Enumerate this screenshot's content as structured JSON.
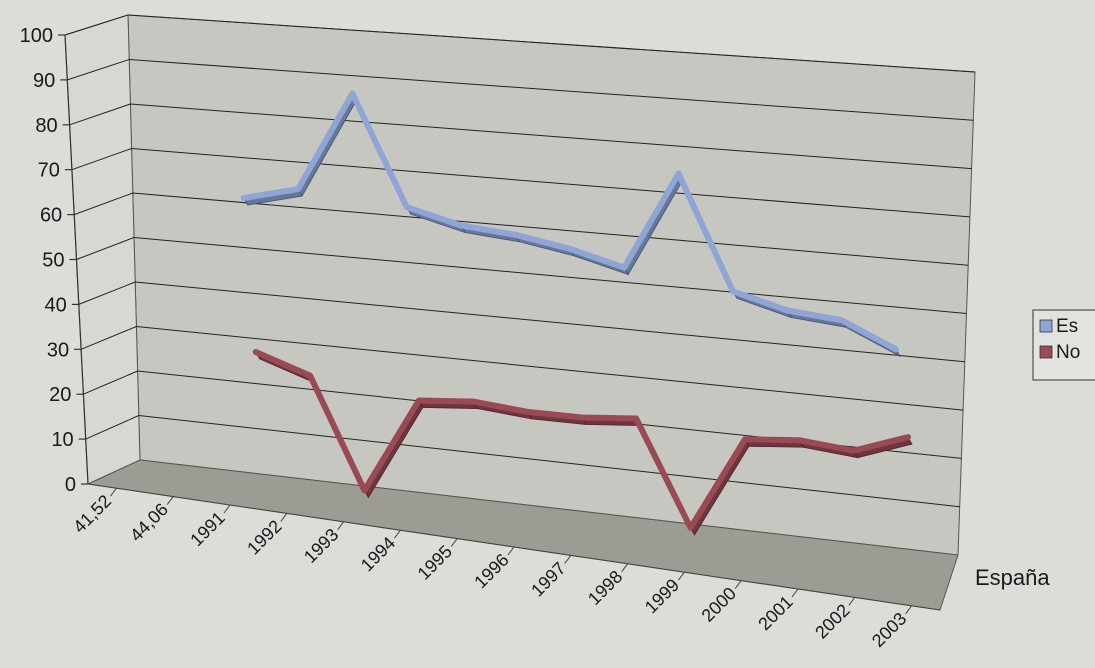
{
  "chart_data": {
    "type": "line",
    "title": "",
    "xlabel": "",
    "ylabel": "",
    "ylim": [
      0,
      100
    ],
    "y_ticks": [
      0,
      10,
      20,
      30,
      40,
      50,
      60,
      70,
      80,
      90,
      100
    ],
    "categories": [
      "41,52",
      "44,06",
      "1991",
      "1992",
      "1993",
      "1994",
      "1995",
      "1996",
      "1997",
      "1998",
      "1999",
      "2000",
      "2001",
      "2002",
      "2003"
    ],
    "depth_label": "España",
    "grid": true,
    "legend_position": "right",
    "series": [
      {
        "name": "Es",
        "color": "#8ea5d6",
        "values": [
          null,
          null,
          65,
          68,
          90,
          66,
          63,
          62,
          60,
          57,
          78,
          54,
          51,
          50,
          45
        ]
      },
      {
        "name": "No",
        "color": "#9a4a55",
        "values": [
          null,
          null,
          31,
          27,
          3,
          24,
          25,
          24,
          24,
          25,
          3,
          23,
          24,
          23,
          27
        ]
      }
    ]
  }
}
